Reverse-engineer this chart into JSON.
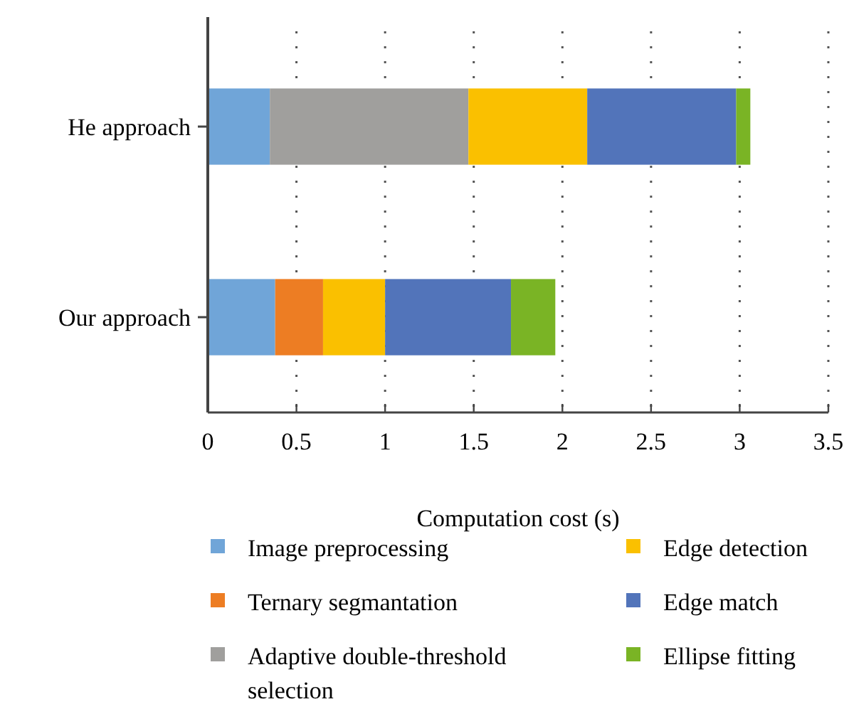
{
  "chart_data": {
    "type": "bar",
    "orientation": "horizontal",
    "stacked": true,
    "xlabel": "Computation cost (s)",
    "categories": [
      "He approach",
      "Our approach"
    ],
    "series": [
      {
        "name": "Image preprocessing",
        "color": "#70a5d8",
        "values": [
          0.35,
          0.38
        ]
      },
      {
        "name": "Ternary segmantation",
        "color": "#ed7d23",
        "values": [
          null,
          0.27
        ]
      },
      {
        "name": "Adaptive double-threshold selection",
        "color": "#a09f9d",
        "values": [
          1.12,
          null
        ]
      },
      {
        "name": "Edge detection",
        "color": "#fac000",
        "values": [
          0.67,
          0.35
        ]
      },
      {
        "name": "Edge match",
        "color": "#5274ba",
        "values": [
          0.84,
          0.71
        ]
      },
      {
        "name": "Ellipse fitting",
        "color": "#7ab425",
        "values": [
          0.08,
          0.25
        ]
      }
    ],
    "xlim": [
      0,
      3.5
    ],
    "xticks": [
      0,
      0.5,
      1,
      1.5,
      2,
      2.5,
      3,
      3.5
    ],
    "grid": "x",
    "legend": "bottom"
  }
}
